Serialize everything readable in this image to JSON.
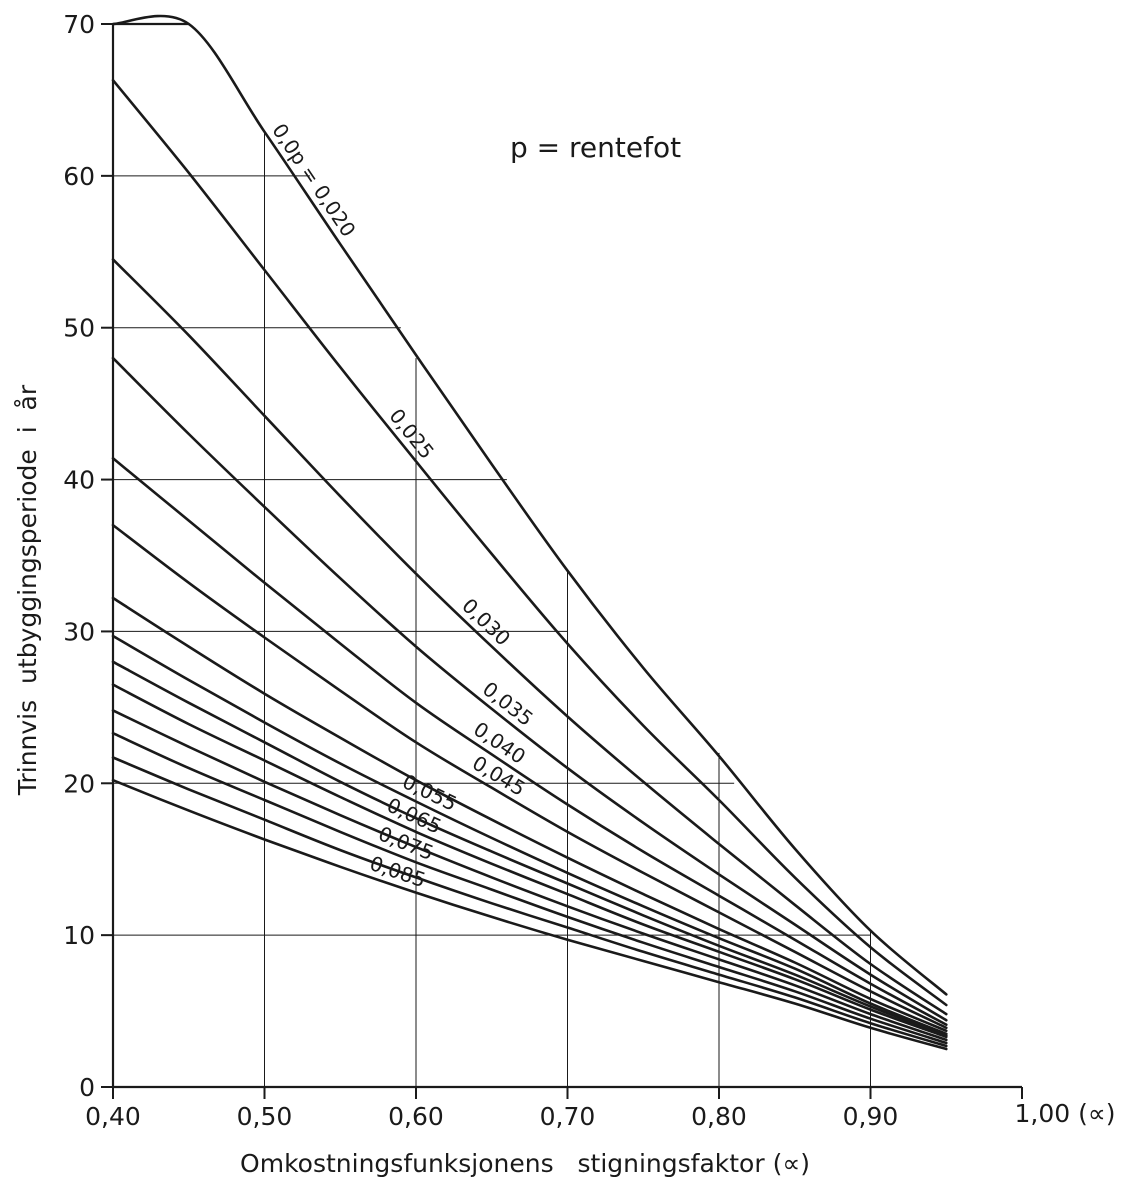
{
  "chart_data": {
    "type": "line",
    "title": "",
    "annotation": "p = rentefot",
    "xlabel": "Omkostningsfunksjonens   stigningsfaktor (∝)",
    "ylabel": "Trinnvis  utbyggingsperiode  i  år",
    "x_end_label": "1,00 (∝)",
    "xlim": [
      0.4,
      1.0
    ],
    "ylim": [
      0,
      70
    ],
    "xticks": [
      0.4,
      0.5,
      0.6,
      0.7,
      0.8,
      0.9,
      1.0
    ],
    "xtick_labels": [
      "0,40",
      "0,50",
      "0,60",
      "0,70",
      "0,80",
      "0,90",
      ""
    ],
    "yticks": [
      0,
      10,
      20,
      30,
      40,
      50,
      60,
      70
    ],
    "ytick_labels": [
      "0",
      "10",
      "20",
      "30",
      "40",
      "50",
      "60",
      "70"
    ],
    "grid": true,
    "x": [
      0.4,
      0.45,
      0.5,
      0.55,
      0.6,
      0.65,
      0.7,
      0.75,
      0.8,
      0.85,
      0.9,
      0.95
    ],
    "series": [
      {
        "name": "0,0p = 0,020",
        "values": [
          70.0,
          70.0,
          62.9,
          55.5,
          48.2,
          41.0,
          34.0,
          27.6,
          21.8,
          15.7,
          10.3,
          6.1
        ]
      },
      {
        "name": "0,025",
        "values": [
          66.3,
          60.2,
          53.8,
          47.4,
          41.2,
          35.1,
          29.2,
          23.8,
          18.9,
          13.8,
          9.2,
          5.4
        ]
      },
      {
        "name": "0,030",
        "values": [
          54.5,
          49.5,
          44.2,
          38.9,
          33.8,
          29.0,
          24.4,
          20.1,
          16.0,
          12.0,
          8.1,
          4.8
        ]
      },
      {
        "name": "0,035",
        "values": [
          48.0,
          43.0,
          38.2,
          33.5,
          29.0,
          24.9,
          21.0,
          17.4,
          14.0,
          10.7,
          7.4,
          4.4
        ]
      },
      {
        "name": "0,040",
        "values": [
          41.4,
          37.3,
          33.2,
          29.2,
          25.3,
          21.9,
          18.6,
          15.5,
          12.6,
          9.7,
          6.8,
          4.1
        ]
      },
      {
        "name": "0,045",
        "values": [
          37.0,
          33.2,
          29.6,
          26.1,
          22.7,
          19.7,
          16.8,
          14.1,
          11.5,
          8.9,
          6.3,
          3.9
        ]
      },
      {
        "values": [
          32.2,
          29.0,
          25.9,
          23.0,
          20.2,
          17.6,
          15.1,
          12.7,
          10.4,
          8.2,
          5.8,
          3.7
        ]
      },
      {
        "name": "0,055",
        "values": [
          29.7,
          26.8,
          24.0,
          21.3,
          18.8,
          16.4,
          14.1,
          11.9,
          9.8,
          7.8,
          5.5,
          3.5
        ]
      },
      {
        "values": [
          28.0,
          25.3,
          22.7,
          20.1,
          17.7,
          15.5,
          13.4,
          11.3,
          9.3,
          7.4,
          5.3,
          3.4
        ]
      },
      {
        "name": "0,065",
        "values": [
          26.5,
          23.9,
          21.5,
          19.1,
          16.8,
          14.7,
          12.7,
          10.7,
          8.9,
          7.1,
          5.1,
          3.3
        ]
      },
      {
        "values": [
          24.8,
          22.4,
          20.1,
          17.9,
          15.8,
          13.8,
          11.9,
          10.1,
          8.4,
          6.7,
          4.8,
          3.1
        ]
      },
      {
        "name": "0,075",
        "values": [
          23.3,
          21.0,
          18.9,
          16.8,
          14.8,
          13.0,
          11.2,
          9.5,
          7.9,
          6.3,
          4.5,
          2.9
        ]
      },
      {
        "values": [
          21.7,
          19.6,
          17.6,
          15.6,
          13.8,
          12.1,
          10.5,
          8.9,
          7.4,
          5.9,
          4.2,
          2.7
        ]
      },
      {
        "name": "0,085",
        "values": [
          20.2,
          18.2,
          16.3,
          14.5,
          12.8,
          11.2,
          9.7,
          8.3,
          6.9,
          5.5,
          3.9,
          2.5
        ]
      }
    ]
  }
}
